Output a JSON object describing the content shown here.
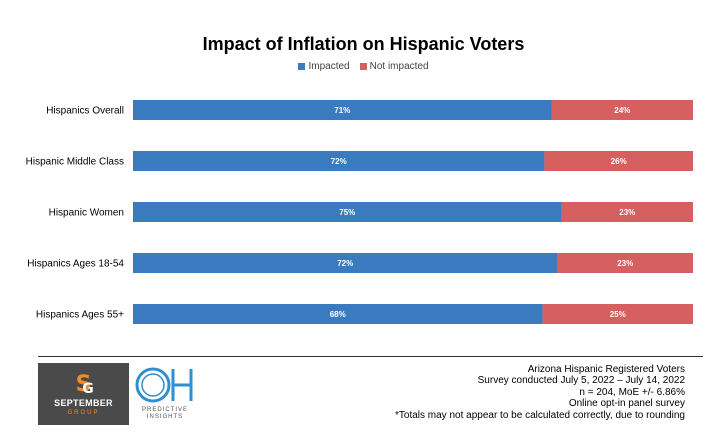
{
  "chart_data": {
    "type": "bar",
    "orientation": "horizontal",
    "stacked": true,
    "title": "Impact of Inflation on Hispanic Voters",
    "categories": [
      "Hispanics Overall",
      "Hispanic Middle Class",
      "Hispanic Women",
      "Hispanics Ages 18-54",
      "Hispanics Ages 55+"
    ],
    "series": [
      {
        "name": "Impacted",
        "values": [
          71,
          72,
          75,
          72,
          68
        ],
        "labels": [
          "71%",
          "72%",
          "75%",
          "72%",
          "68%"
        ],
        "color": "#3a7bbf"
      },
      {
        "name": "Not impacted",
        "values": [
          24,
          26,
          23,
          23,
          25
        ],
        "labels": [
          "24%",
          "26%",
          "23%",
          "23%",
          "25%"
        ],
        "color": "#d65f5f"
      }
    ],
    "legend_position": "top-center",
    "grid": false
  },
  "logos": {
    "september": {
      "top": "SEPTEMBER",
      "bottom": "GROUP",
      "accent": "#f28c28"
    },
    "oh": {
      "line1": "PREDICTIVE",
      "line2": "INSIGHTS",
      "accent": "#2f8fd0"
    }
  },
  "footnotes": [
    "Arizona Hispanic Registered Voters",
    "Survey conducted July 5, 2022 – July 14, 2022",
    "n = 204, MoE +/- 6.86%",
    "Online opt-in panel survey",
    "*Totals may not appear to be calculated correctly, due to rounding"
  ]
}
